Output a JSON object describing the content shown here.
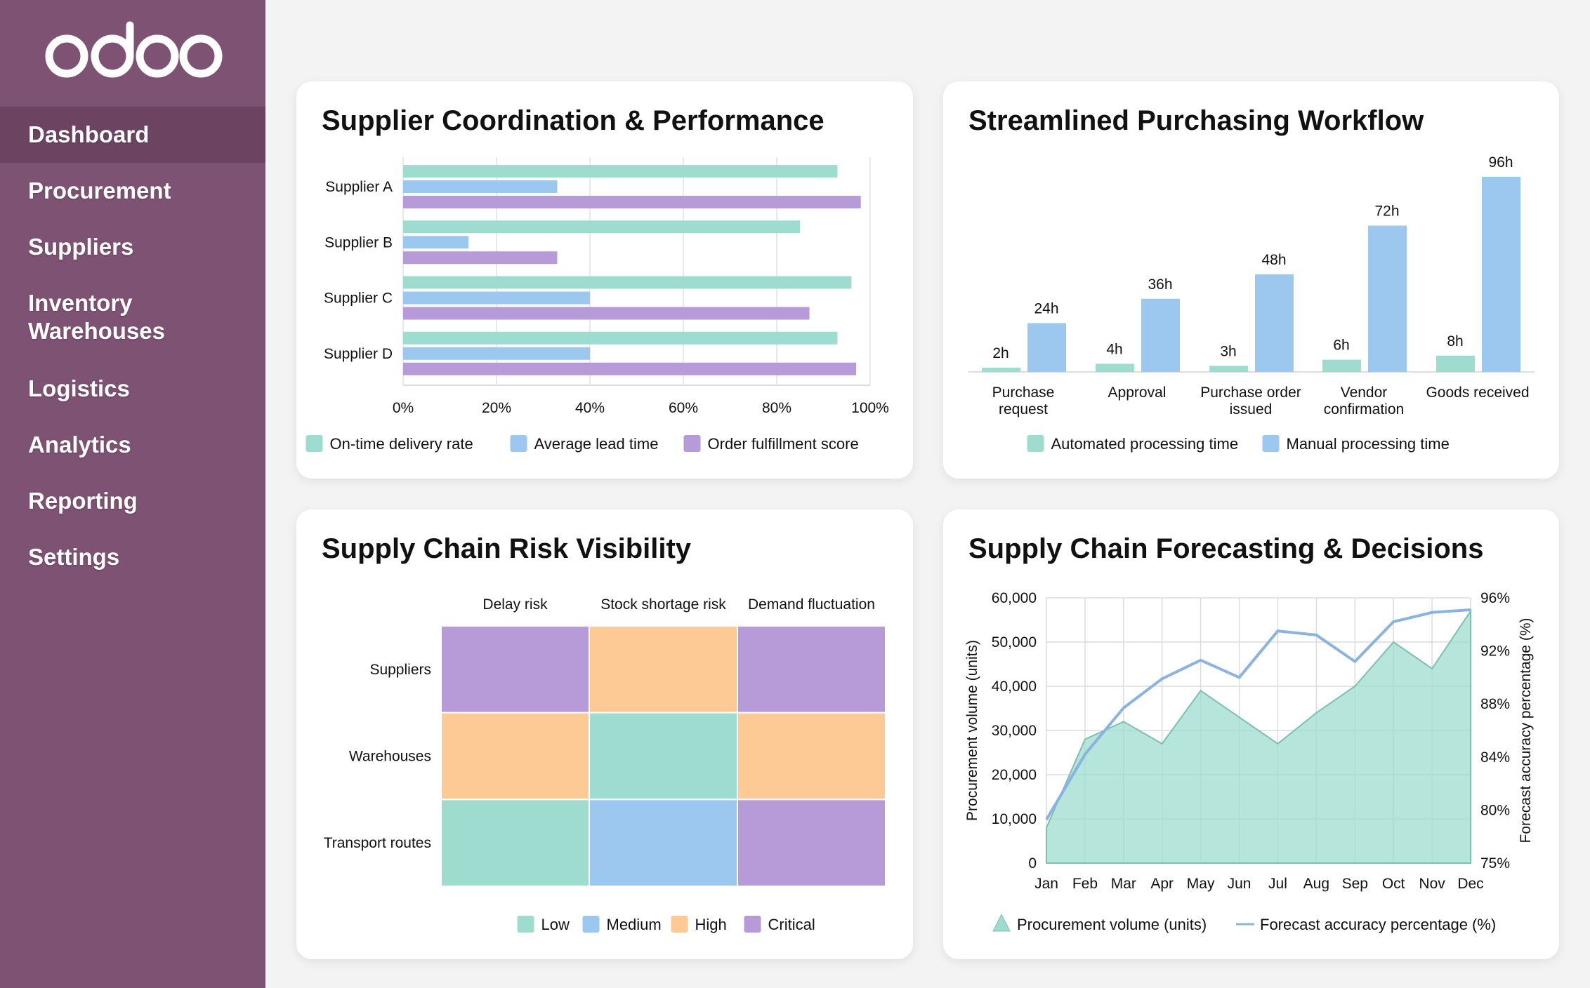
{
  "sidebar": {
    "logo_text": "odoo",
    "items": [
      {
        "label": "Dashboard",
        "active": true
      },
      {
        "label": "Procurement"
      },
      {
        "label": "Suppliers"
      },
      {
        "label": "Inventory\nWarehouses"
      },
      {
        "label": "Logistics"
      },
      {
        "label": "Analytics"
      },
      {
        "label": "Reporting"
      },
      {
        "label": "Settings"
      }
    ]
  },
  "colors": {
    "sidebar": "#7e5272",
    "teal": "#9ddccf",
    "blue": "#9cc7ee",
    "purple": "#b79ad8",
    "orange": "#fdc994"
  },
  "chart_data": [
    {
      "title": "Supplier Coordination & Performance",
      "type": "bar",
      "orientation": "horizontal",
      "categories": [
        "Supplier A",
        "Supplier B",
        "Supplier C",
        "Supplier D"
      ],
      "xlim": [
        0,
        100
      ],
      "ticks": [
        "0%",
        "20%",
        "40%",
        "60%",
        "80%",
        "100%"
      ],
      "grid": true,
      "legend": "bottom",
      "series": [
        {
          "name": "On-time delivery rate",
          "color": "#9ddccf",
          "values": [
            93,
            85,
            96,
            93
          ]
        },
        {
          "name": "Average lead time",
          "color": "#9cc7ee",
          "values": [
            33,
            14,
            40,
            40
          ]
        },
        {
          "name": "Order fulfillment score",
          "color": "#b79ad8",
          "values": [
            98,
            33,
            87,
            97
          ]
        }
      ]
    },
    {
      "title": "Streamlined Purchasing Workflow",
      "type": "bar",
      "categories": [
        "Purchase\nrequest",
        "Approval",
        "Purchase order\nissued",
        "Vendor\nconfirmation",
        "Goods received"
      ],
      "ylim": [
        0,
        96
      ],
      "legend": "bottom",
      "series": [
        {
          "name": "Automated processing time",
          "color": "#9ddccf",
          "values": [
            2,
            4,
            3,
            6,
            8
          ],
          "labels": [
            "2h",
            "4h",
            "3h",
            "6h",
            "8h"
          ]
        },
        {
          "name": "Manual processing time",
          "color": "#9cc7ee",
          "values": [
            24,
            36,
            48,
            72,
            96
          ],
          "labels": [
            "24h",
            "36h",
            "48h",
            "72h",
            "96h"
          ]
        }
      ]
    },
    {
      "title": "Supply Chain Risk Visibility",
      "type": "heatmap",
      "columns": [
        "Delay risk",
        "Stock shortage risk",
        "Demand fluctuation"
      ],
      "rows": [
        "Suppliers",
        "Warehouses",
        "Transport routes"
      ],
      "values": [
        [
          "Critical",
          "High",
          "Critical"
        ],
        [
          "High",
          "Low",
          "High"
        ],
        [
          "Low",
          "Medium",
          "Critical"
        ]
      ],
      "legend": "bottom",
      "levels": [
        {
          "name": "Low",
          "color": "#9ddccf"
        },
        {
          "name": "Medium",
          "color": "#9cc7ee"
        },
        {
          "name": "High",
          "color": "#fdc994"
        },
        {
          "name": "Critical",
          "color": "#b79ad8"
        }
      ]
    },
    {
      "title": "Supply Chain Forecasting & Decisions",
      "type": "area",
      "x": [
        "Jan",
        "Feb",
        "Mar",
        "Apr",
        "May",
        "Jun",
        "Jul",
        "Aug",
        "Sep",
        "Oct",
        "Nov",
        "Dec"
      ],
      "ylabel": "Procurement volume (units)",
      "ylim": [
        0,
        60000
      ],
      "yticks": [
        "0",
        "10,000",
        "20,000",
        "30,000",
        "40,000",
        "50,000",
        "60,000"
      ],
      "y2label": "Forecast accuracy percentage (%)",
      "y2ticks": [
        "75%",
        "80%",
        "84%",
        "88%",
        "92%",
        "96%"
      ],
      "y2tick_values": [
        75,
        80,
        84,
        88,
        92,
        96
      ],
      "grid": true,
      "legend": "bottom",
      "series": [
        {
          "name": "Procurement volume (units)",
          "type": "area",
          "axis": "left",
          "color": "#9ddccf",
          "values": [
            8000,
            28000,
            32000,
            27000,
            39000,
            33000,
            27000,
            34000,
            40000,
            50000,
            44000,
            57000
          ]
        },
        {
          "name": "Forecast accuracy percentage (%)",
          "type": "line",
          "axis": "right",
          "color": "#8bb3e0",
          "values": [
            79.1,
            84.2,
            87.7,
            89.9,
            91.3,
            90.0,
            93.5,
            93.2,
            91.2,
            94.2,
            94.9,
            95.1
          ]
        }
      ]
    }
  ]
}
